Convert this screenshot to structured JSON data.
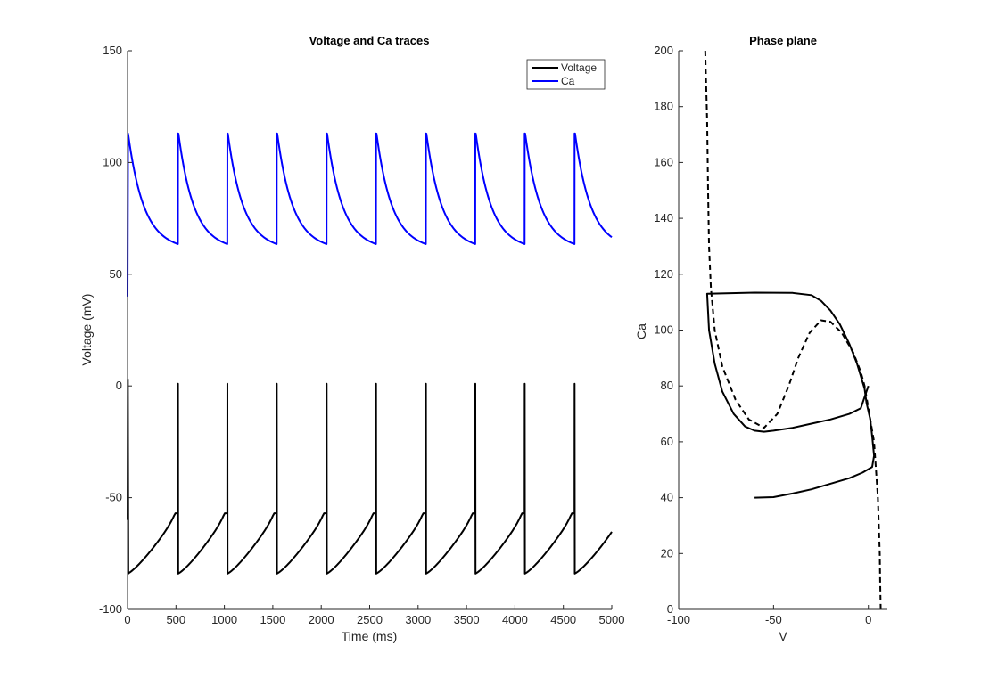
{
  "chart_data": [
    {
      "type": "line",
      "title": "Voltage and Ca traces",
      "xlabel": "Time (ms)",
      "ylabel": "Voltage (mV)",
      "xlim": [
        0,
        5000
      ],
      "ylim": [
        -100,
        150
      ],
      "xticks": [
        0,
        500,
        1000,
        1500,
        2000,
        2500,
        3000,
        3500,
        4000,
        4500,
        5000
      ],
      "yticks": [
        -100,
        -50,
        0,
        50,
        100,
        150
      ],
      "grid": false,
      "legend": {
        "position": "top-right",
        "entries": [
          "Voltage",
          "Ca"
        ]
      },
      "spike_times": [
        0,
        520,
        1030,
        1540,
        2055,
        2565,
        3080,
        3590,
        4100,
        4615
      ],
      "series": [
        {
          "name": "Voltage",
          "color": "#000000",
          "description_values": {
            "rest_min": -84,
            "pre_spike": -57,
            "peak": 1,
            "initial": -60,
            "end": -68
          }
        },
        {
          "name": "Ca",
          "color": "#0000ff",
          "description_values": {
            "initial": 40,
            "peak": 113,
            "trough": 63.5,
            "end": 70
          }
        }
      ]
    },
    {
      "type": "line",
      "title": "Phase plane",
      "xlabel": "V",
      "ylabel": "Ca",
      "xlim": [
        -100,
        10
      ],
      "ylim": [
        0,
        200
      ],
      "xticks": [
        -100,
        -50,
        0
      ],
      "yticks": [
        0,
        20,
        40,
        60,
        80,
        100,
        120,
        140,
        160,
        180,
        200
      ],
      "grid": false,
      "series": [
        {
          "style": "dashed",
          "color": "#000000",
          "points": [
            [
              -86,
              200
            ],
            [
              -85,
              175
            ],
            [
              -84.5,
              150
            ],
            [
              -84,
              130
            ],
            [
              -83,
              115
            ],
            [
              -81,
              100
            ],
            [
              -77,
              87
            ],
            [
              -70,
              75
            ],
            [
              -63,
              68
            ],
            [
              -55,
              65
            ],
            [
              -48,
              70
            ],
            [
              -42,
              80
            ],
            [
              -37,
              90
            ],
            [
              -31,
              99
            ],
            [
              -25,
              103.5
            ],
            [
              -20,
              103
            ],
            [
              -14,
              99
            ],
            [
              -8,
              92
            ],
            [
              -4,
              85
            ],
            [
              -2,
              80
            ],
            [
              -1,
              76
            ],
            [
              0,
              72
            ],
            [
              1,
              68
            ],
            [
              2,
              64
            ],
            [
              3,
              60
            ],
            [
              3.5,
              55
            ],
            [
              4.5,
              45
            ],
            [
              5,
              40
            ],
            [
              5.5,
              30
            ],
            [
              6,
              20
            ],
            [
              6.2,
              10
            ],
            [
              6.5,
              0
            ]
          ]
        },
        {
          "style": "solid",
          "color": "#000000",
          "points": [
            [
              -60,
              40
            ],
            [
              -50,
              40.2
            ],
            [
              -40,
              41.5
            ],
            [
              -30,
              43
            ],
            [
              -20,
              45
            ],
            [
              -10,
              47
            ],
            [
              -3,
              49
            ],
            [
              2,
              51
            ],
            [
              3,
              55
            ],
            [
              2,
              62
            ],
            [
              1,
              68
            ],
            [
              -1,
              74
            ],
            [
              -2,
              79
            ],
            [
              -6,
              88
            ],
            [
              -10,
              95
            ],
            [
              -15,
              102
            ],
            [
              -20,
              107
            ],
            [
              -25,
              110.5
            ],
            [
              -30,
              112.5
            ],
            [
              -40,
              113.3
            ],
            [
              -60,
              113.4
            ],
            [
              -85,
              113
            ],
            [
              -84,
              100
            ],
            [
              -81,
              88
            ],
            [
              -77,
              78
            ],
            [
              -71,
              70
            ],
            [
              -65,
              65.5
            ],
            [
              -60,
              64
            ],
            [
              -55,
              63.6
            ],
            [
              -50,
              64
            ],
            [
              -40,
              65
            ],
            [
              -30,
              66.5
            ],
            [
              -20,
              68
            ],
            [
              -10,
              70
            ],
            [
              -4,
              72
            ],
            [
              -2,
              76
            ],
            [
              0,
              80
            ]
          ]
        }
      ]
    }
  ]
}
